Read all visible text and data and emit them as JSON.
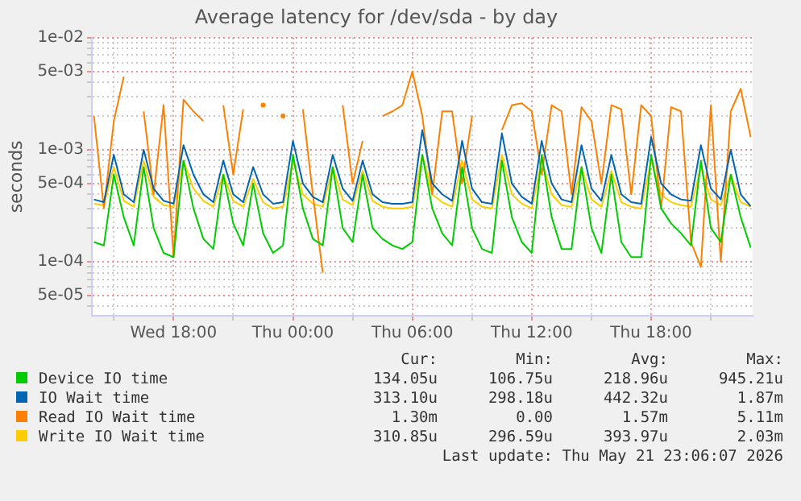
{
  "chart_data": {
    "type": "line",
    "title": "Average latency for /dev/sda - by day",
    "ylabel": "seconds",
    "x": [
      "2026-05-20T14:00",
      "2026-05-20T14:30",
      "2026-05-20T15:00",
      "2026-05-20T15:30",
      "2026-05-20T16:00",
      "2026-05-20T16:30",
      "2026-05-20T17:00",
      "2026-05-20T17:30",
      "2026-05-20T18:00",
      "2026-05-20T18:30",
      "2026-05-20T19:00",
      "2026-05-20T19:30",
      "2026-05-20T20:00",
      "2026-05-20T20:30",
      "2026-05-20T21:00",
      "2026-05-20T21:30",
      "2026-05-20T22:00",
      "2026-05-20T22:30",
      "2026-05-20T23:00",
      "2026-05-20T23:30",
      "2026-05-21T00:00",
      "2026-05-21T00:30",
      "2026-05-21T01:00",
      "2026-05-21T01:30",
      "2026-05-21T02:00",
      "2026-05-21T02:30",
      "2026-05-21T03:00",
      "2026-05-21T03:30",
      "2026-05-21T04:00",
      "2026-05-21T04:30",
      "2026-05-21T05:00",
      "2026-05-21T05:30",
      "2026-05-21T06:00",
      "2026-05-21T06:30",
      "2026-05-21T07:00",
      "2026-05-21T07:30",
      "2026-05-21T08:00",
      "2026-05-21T08:30",
      "2026-05-21T09:00",
      "2026-05-21T09:30",
      "2026-05-21T10:00",
      "2026-05-21T10:30",
      "2026-05-21T11:00",
      "2026-05-21T11:30",
      "2026-05-21T12:00",
      "2026-05-21T12:30",
      "2026-05-21T13:00",
      "2026-05-21T13:30",
      "2026-05-21T14:00",
      "2026-05-21T14:30",
      "2026-05-21T15:00",
      "2026-05-21T15:30",
      "2026-05-21T16:00",
      "2026-05-21T16:30",
      "2026-05-21T17:00",
      "2026-05-21T17:30",
      "2026-05-21T18:00",
      "2026-05-21T18:30",
      "2026-05-21T19:00",
      "2026-05-21T19:30",
      "2026-05-21T20:00",
      "2026-05-21T20:30",
      "2026-05-21T21:00",
      "2026-05-21T21:30",
      "2026-05-21T22:00",
      "2026-05-21T22:30",
      "2026-05-21T23:00"
    ],
    "xlim": [
      "2026-05-20T13:54",
      "2026-05-21T23:06"
    ],
    "xticks": [
      {
        "value": "2026-05-20T15:00",
        "label": null
      },
      {
        "value": "2026-05-20T18:00",
        "label": "Wed 18:00"
      },
      {
        "value": "2026-05-20T21:00",
        "label": null
      },
      {
        "value": "2026-05-21T00:00",
        "label": "Thu 00:00"
      },
      {
        "value": "2026-05-21T03:00",
        "label": null
      },
      {
        "value": "2026-05-21T06:00",
        "label": "Thu 06:00"
      },
      {
        "value": "2026-05-21T09:00",
        "label": null
      },
      {
        "value": "2026-05-21T12:00",
        "label": "Thu 12:00"
      },
      {
        "value": "2026-05-21T15:00",
        "label": null
      },
      {
        "value": "2026-05-21T18:00",
        "label": "Thu 18:00"
      },
      {
        "value": "2026-05-21T21:00",
        "label": null
      }
    ],
    "ylim": [
      3.3e-05,
      0.01
    ],
    "yticks": [
      {
        "value": 4e-05,
        "label": null
      },
      {
        "value": 5e-05,
        "label": "5e-05"
      },
      {
        "value": 6e-05,
        "label": null
      },
      {
        "value": 7e-05,
        "label": null
      },
      {
        "value": 8e-05,
        "label": null
      },
      {
        "value": 9e-05,
        "label": null
      },
      {
        "value": 0.0001,
        "label": "1e-04"
      },
      {
        "value": 0.0002,
        "label": null
      },
      {
        "value": 0.0003,
        "label": null
      },
      {
        "value": 0.0004,
        "label": null
      },
      {
        "value": 0.0005,
        "label": "5e-04"
      },
      {
        "value": 0.0006,
        "label": null
      },
      {
        "value": 0.0007,
        "label": null
      },
      {
        "value": 0.0008,
        "label": null
      },
      {
        "value": 0.0009,
        "label": null
      },
      {
        "value": 0.001,
        "label": "1e-03"
      },
      {
        "value": 0.002,
        "label": null
      },
      {
        "value": 0.003,
        "label": null
      },
      {
        "value": 0.004,
        "label": null
      },
      {
        "value": 0.005,
        "label": "5e-03"
      },
      {
        "value": 0.006,
        "label": null
      },
      {
        "value": 0.007,
        "label": null
      },
      {
        "value": 0.008,
        "label": null
      },
      {
        "value": 0.009,
        "label": null
      },
      {
        "value": 0.01,
        "label": "1e-02"
      }
    ],
    "log": "y",
    "grid": true,
    "legend": "bottom",
    "marker": "none",
    "annotations": [
      "Cur:",
      "Min:",
      "Avg:",
      "Max:",
      "134.05u",
      "106.75u",
      "218.96u",
      "945.21u",
      "313.10u",
      "298.18u",
      "442.32u",
      "1.87m",
      "1.30m",
      "0.00",
      "1.57m",
      "5.11m",
      "310.85u",
      "296.59u",
      "393.97u",
      "2.03m",
      "Last update: Thu May 21 23:06:07 2026"
    ],
    "series": [
      {
        "name": "Device IO time",
        "color": "#00cc00",
        "values": [
          0.00015,
          0.00014,
          0.0006,
          0.00025,
          0.00014,
          0.0007,
          0.0002,
          0.00012,
          0.00011,
          0.0008,
          0.0003,
          0.00016,
          0.00013,
          0.0006,
          0.00022,
          0.00014,
          0.0005,
          0.00018,
          0.00012,
          0.00014,
          0.0009,
          0.0003,
          0.00016,
          0.00014,
          0.0007,
          0.0002,
          0.00015,
          0.0006,
          0.0002,
          0.00016,
          0.00014,
          0.00013,
          0.00015,
          0.0009,
          0.0003,
          0.00018,
          0.00014,
          0.0007,
          0.0002,
          0.00013,
          0.00012,
          0.0008,
          0.00025,
          0.00015,
          0.00012,
          0.0009,
          0.00025,
          0.00013,
          0.00013,
          0.0007,
          0.0002,
          0.00012,
          0.0006,
          0.00015,
          0.00011,
          0.00011,
          0.0009,
          0.0003,
          0.00022,
          0.00018,
          0.00014,
          0.0008,
          0.0002,
          0.00015,
          0.0006,
          0.00025,
          0.000134
        ]
      },
      {
        "name": "IO Wait time",
        "color": "#0066b3",
        "values": [
          0.00036,
          0.00034,
          0.0009,
          0.0004,
          0.00034,
          0.001,
          0.00045,
          0.00035,
          0.00033,
          0.0011,
          0.0006,
          0.0004,
          0.00034,
          0.0008,
          0.0004,
          0.00034,
          0.0007,
          0.0004,
          0.00033,
          0.00034,
          0.0012,
          0.0005,
          0.00038,
          0.00034,
          0.0009,
          0.00045,
          0.00035,
          0.0008,
          0.0004,
          0.00034,
          0.00033,
          0.00033,
          0.00034,
          0.0015,
          0.0005,
          0.0004,
          0.00035,
          0.0012,
          0.00045,
          0.00034,
          0.00033,
          0.0014,
          0.0005,
          0.00038,
          0.00033,
          0.0012,
          0.0005,
          0.00036,
          0.00034,
          0.0011,
          0.00045,
          0.00035,
          0.0009,
          0.0004,
          0.00034,
          0.00033,
          0.0013,
          0.0005,
          0.0004,
          0.00036,
          0.00035,
          0.0011,
          0.00045,
          0.00036,
          0.001,
          0.0004,
          0.000313
        ]
      },
      {
        "name": "Read IO Wait time",
        "color": "#ff8000",
        "values": [
          0.002,
          0.0003,
          0.0018,
          0.0045,
          null,
          0.0022,
          0.0004,
          0.0025,
          0.00011,
          0.0028,
          0.0022,
          0.0018,
          null,
          0.0025,
          0.0006,
          0.0023,
          null,
          0.0025,
          null,
          0.002,
          null,
          0.0023,
          0.0004,
          8e-05,
          null,
          0.0025,
          0.0005,
          0.0012,
          null,
          0.002,
          0.0022,
          0.0025,
          0.005,
          0.002,
          0.0004,
          0.0022,
          0.0022,
          0.0005,
          0.002,
          null,
          null,
          0.0015,
          0.0025,
          0.0026,
          0.0022,
          0.0006,
          0.0025,
          0.0022,
          0.0004,
          0.0024,
          0.0018,
          0.0005,
          0.0025,
          0.0023,
          0.0004,
          0.0025,
          0.002,
          0.0003,
          0.0024,
          0.0022,
          0.00015,
          9e-05,
          0.0025,
          0.0001,
          0.0022,
          0.0035,
          0.0013
        ]
      },
      {
        "name": "Write IO Wait time",
        "color": "#ffcc00",
        "values": [
          0.00033,
          0.00032,
          0.0007,
          0.00035,
          0.00031,
          0.0008,
          0.00038,
          0.00032,
          0.00031,
          0.0008,
          0.00045,
          0.00035,
          0.00031,
          0.0006,
          0.00035,
          0.00031,
          0.00055,
          0.00034,
          0.0003,
          0.00031,
          0.0008,
          0.0004,
          0.00033,
          0.00031,
          0.0007,
          0.00036,
          0.00032,
          0.00065,
          0.00035,
          0.00031,
          0.0003,
          0.0003,
          0.00031,
          0.0009,
          0.0004,
          0.00034,
          0.00031,
          0.0008,
          0.00036,
          0.00031,
          0.0003,
          0.0009,
          0.0004,
          0.00033,
          0.0003,
          0.0008,
          0.0004,
          0.00032,
          0.00031,
          0.0007,
          0.00036,
          0.00031,
          0.00065,
          0.00034,
          0.00031,
          0.0003,
          0.0008,
          0.0004,
          0.00034,
          0.00032,
          0.00031,
          0.0007,
          0.00036,
          0.00032,
          0.0006,
          0.00034,
          0.000311
        ]
      }
    ]
  }
}
